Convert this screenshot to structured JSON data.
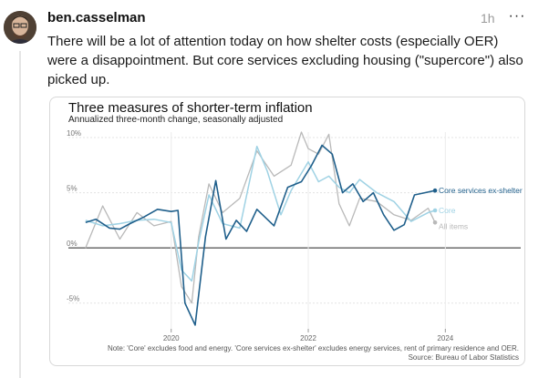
{
  "post": {
    "username": "ben.casselman",
    "time": "1h",
    "more_label": "···",
    "text": "There will be a lot of attention today on how shelter costs (especially OER) were a disappointment. But core services excluding housing (\"supercore\") also picked up."
  },
  "colors": {
    "core_services_ex_shelter": "#1f5f8b",
    "core": "#9fd2e4",
    "all_items": "#b9b9b9",
    "avatar": "#6b5a4a"
  },
  "chart_data": {
    "type": "line",
    "title": "Three measures of shorter-term inflation",
    "subtitle": "Annualized three-month change, seasonally adjusted",
    "note": "Note: 'Core' excludes food and energy. 'Core services ex-shelter' excludes energy services, rent of primary residence and OER.",
    "source": "Source: Bureau of Labor Statistics",
    "xlim": [
      2018.5,
      2025.1
    ],
    "ylim": [
      -7.5,
      10.5
    ],
    "yticks": [
      10,
      5,
      0,
      -5
    ],
    "ytick_labels": [
      "10%",
      "5%",
      "0%",
      "-5%"
    ],
    "xticks": [
      2020,
      2022,
      2024
    ],
    "xtick_labels": [
      "2020",
      "2022",
      "2024"
    ],
    "series": [
      {
        "name": "All items",
        "label": "All items",
        "x": [
          2018.75,
          2019.0,
          2019.25,
          2019.5,
          2019.75,
          2020.0,
          2020.15,
          2020.3,
          2020.4,
          2020.55,
          2020.75,
          2021.0,
          2021.25,
          2021.5,
          2021.75,
          2021.9,
          2022.0,
          2022.15,
          2022.3,
          2022.45,
          2022.6,
          2022.75,
          2023.0,
          2023.25,
          2023.5,
          2023.75,
          2023.85
        ],
        "y": [
          0.0,
          3.8,
          0.8,
          3.2,
          2.0,
          2.4,
          -3.5,
          -5.0,
          1.0,
          5.8,
          3.2,
          4.5,
          8.8,
          6.5,
          7.5,
          10.5,
          9.0,
          8.5,
          10.3,
          4.0,
          2.0,
          4.5,
          4.2,
          3.0,
          2.5,
          3.6,
          2.3
        ]
      },
      {
        "name": "Core",
        "label": "Core",
        "x": [
          2018.75,
          2019.0,
          2019.25,
          2019.5,
          2019.75,
          2020.0,
          2020.15,
          2020.3,
          2020.4,
          2020.55,
          2020.75,
          2021.0,
          2021.25,
          2021.4,
          2021.6,
          2021.75,
          2022.0,
          2022.15,
          2022.3,
          2022.45,
          2022.6,
          2022.75,
          2023.0,
          2023.25,
          2023.5,
          2023.75,
          2023.85
        ],
        "y": [
          2.5,
          2.0,
          2.2,
          2.5,
          2.6,
          2.3,
          -2.0,
          -3.0,
          0.5,
          4.8,
          2.2,
          1.8,
          9.2,
          7.0,
          3.0,
          5.2,
          7.8,
          6.0,
          6.5,
          5.5,
          5.0,
          6.2,
          5.0,
          4.2,
          2.4,
          3.2,
          3.4
        ]
      },
      {
        "name": "Core services ex-shelter",
        "label": "Core services ex-shelter",
        "x": [
          2018.75,
          2018.9,
          2019.1,
          2019.25,
          2019.4,
          2019.6,
          2019.8,
          2020.0,
          2020.1,
          2020.2,
          2020.35,
          2020.5,
          2020.65,
          2020.8,
          2020.95,
          2021.1,
          2021.25,
          2021.5,
          2021.7,
          2021.9,
          2022.05,
          2022.2,
          2022.35,
          2022.5,
          2022.65,
          2022.8,
          2022.95,
          2023.1,
          2023.25,
          2023.4,
          2023.55,
          2023.7,
          2023.85
        ],
        "y": [
          2.3,
          2.6,
          1.8,
          1.7,
          2.2,
          2.8,
          3.5,
          3.3,
          3.4,
          -5.0,
          -7.0,
          1.0,
          6.1,
          0.8,
          2.5,
          1.5,
          3.5,
          2.0,
          5.5,
          6.0,
          7.5,
          9.3,
          8.5,
          5.0,
          5.8,
          4.2,
          5.0,
          3.0,
          1.6,
          2.1,
          4.8,
          5.0,
          5.2
        ]
      }
    ]
  }
}
